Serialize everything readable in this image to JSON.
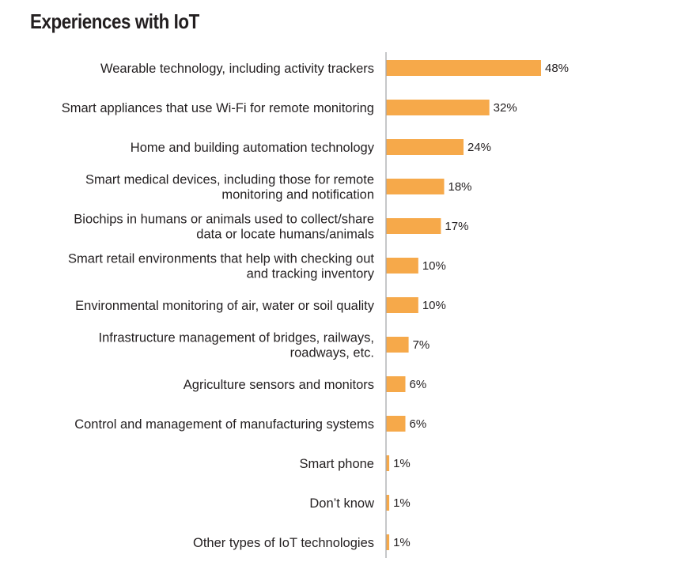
{
  "chart_data": {
    "type": "bar",
    "orientation": "horizontal",
    "title": "Experiences with IoT",
    "categories": [
      [
        "Wearable technology, including activity trackers"
      ],
      [
        "Smart appliances that use Wi-Fi for remote monitoring"
      ],
      [
        "Home and building automation technology"
      ],
      [
        "Smart medical devices, including those for remote",
        "monitoring and notification"
      ],
      [
        "Biochips in humans or animals used to collect/share",
        "data or locate humans/animals"
      ],
      [
        "Smart retail environments that help with checking out",
        "and tracking inventory"
      ],
      [
        "Environmental monitoring of air, water or soil quality"
      ],
      [
        "Infrastructure management of bridges, railways,",
        "roadways, etc."
      ],
      [
        "Agriculture sensors and monitors"
      ],
      [
        "Control and management of manufacturing systems"
      ],
      [
        "Smart phone"
      ],
      [
        "Don’t know"
      ],
      [
        "Other types of IoT technologies"
      ]
    ],
    "values": [
      48,
      32,
      24,
      18,
      17,
      10,
      10,
      7,
      6,
      6,
      1,
      1,
      1
    ],
    "value_labels": [
      "48%",
      "32%",
      "24%",
      "18%",
      "17%",
      "10%",
      "10%",
      "7%",
      "6%",
      "6%",
      "1%",
      "1%",
      "1%"
    ],
    "unit": "%",
    "bar_color": "#f6a94a",
    "axis_color": "#a7a9ac",
    "grid": false,
    "legend": "none"
  }
}
